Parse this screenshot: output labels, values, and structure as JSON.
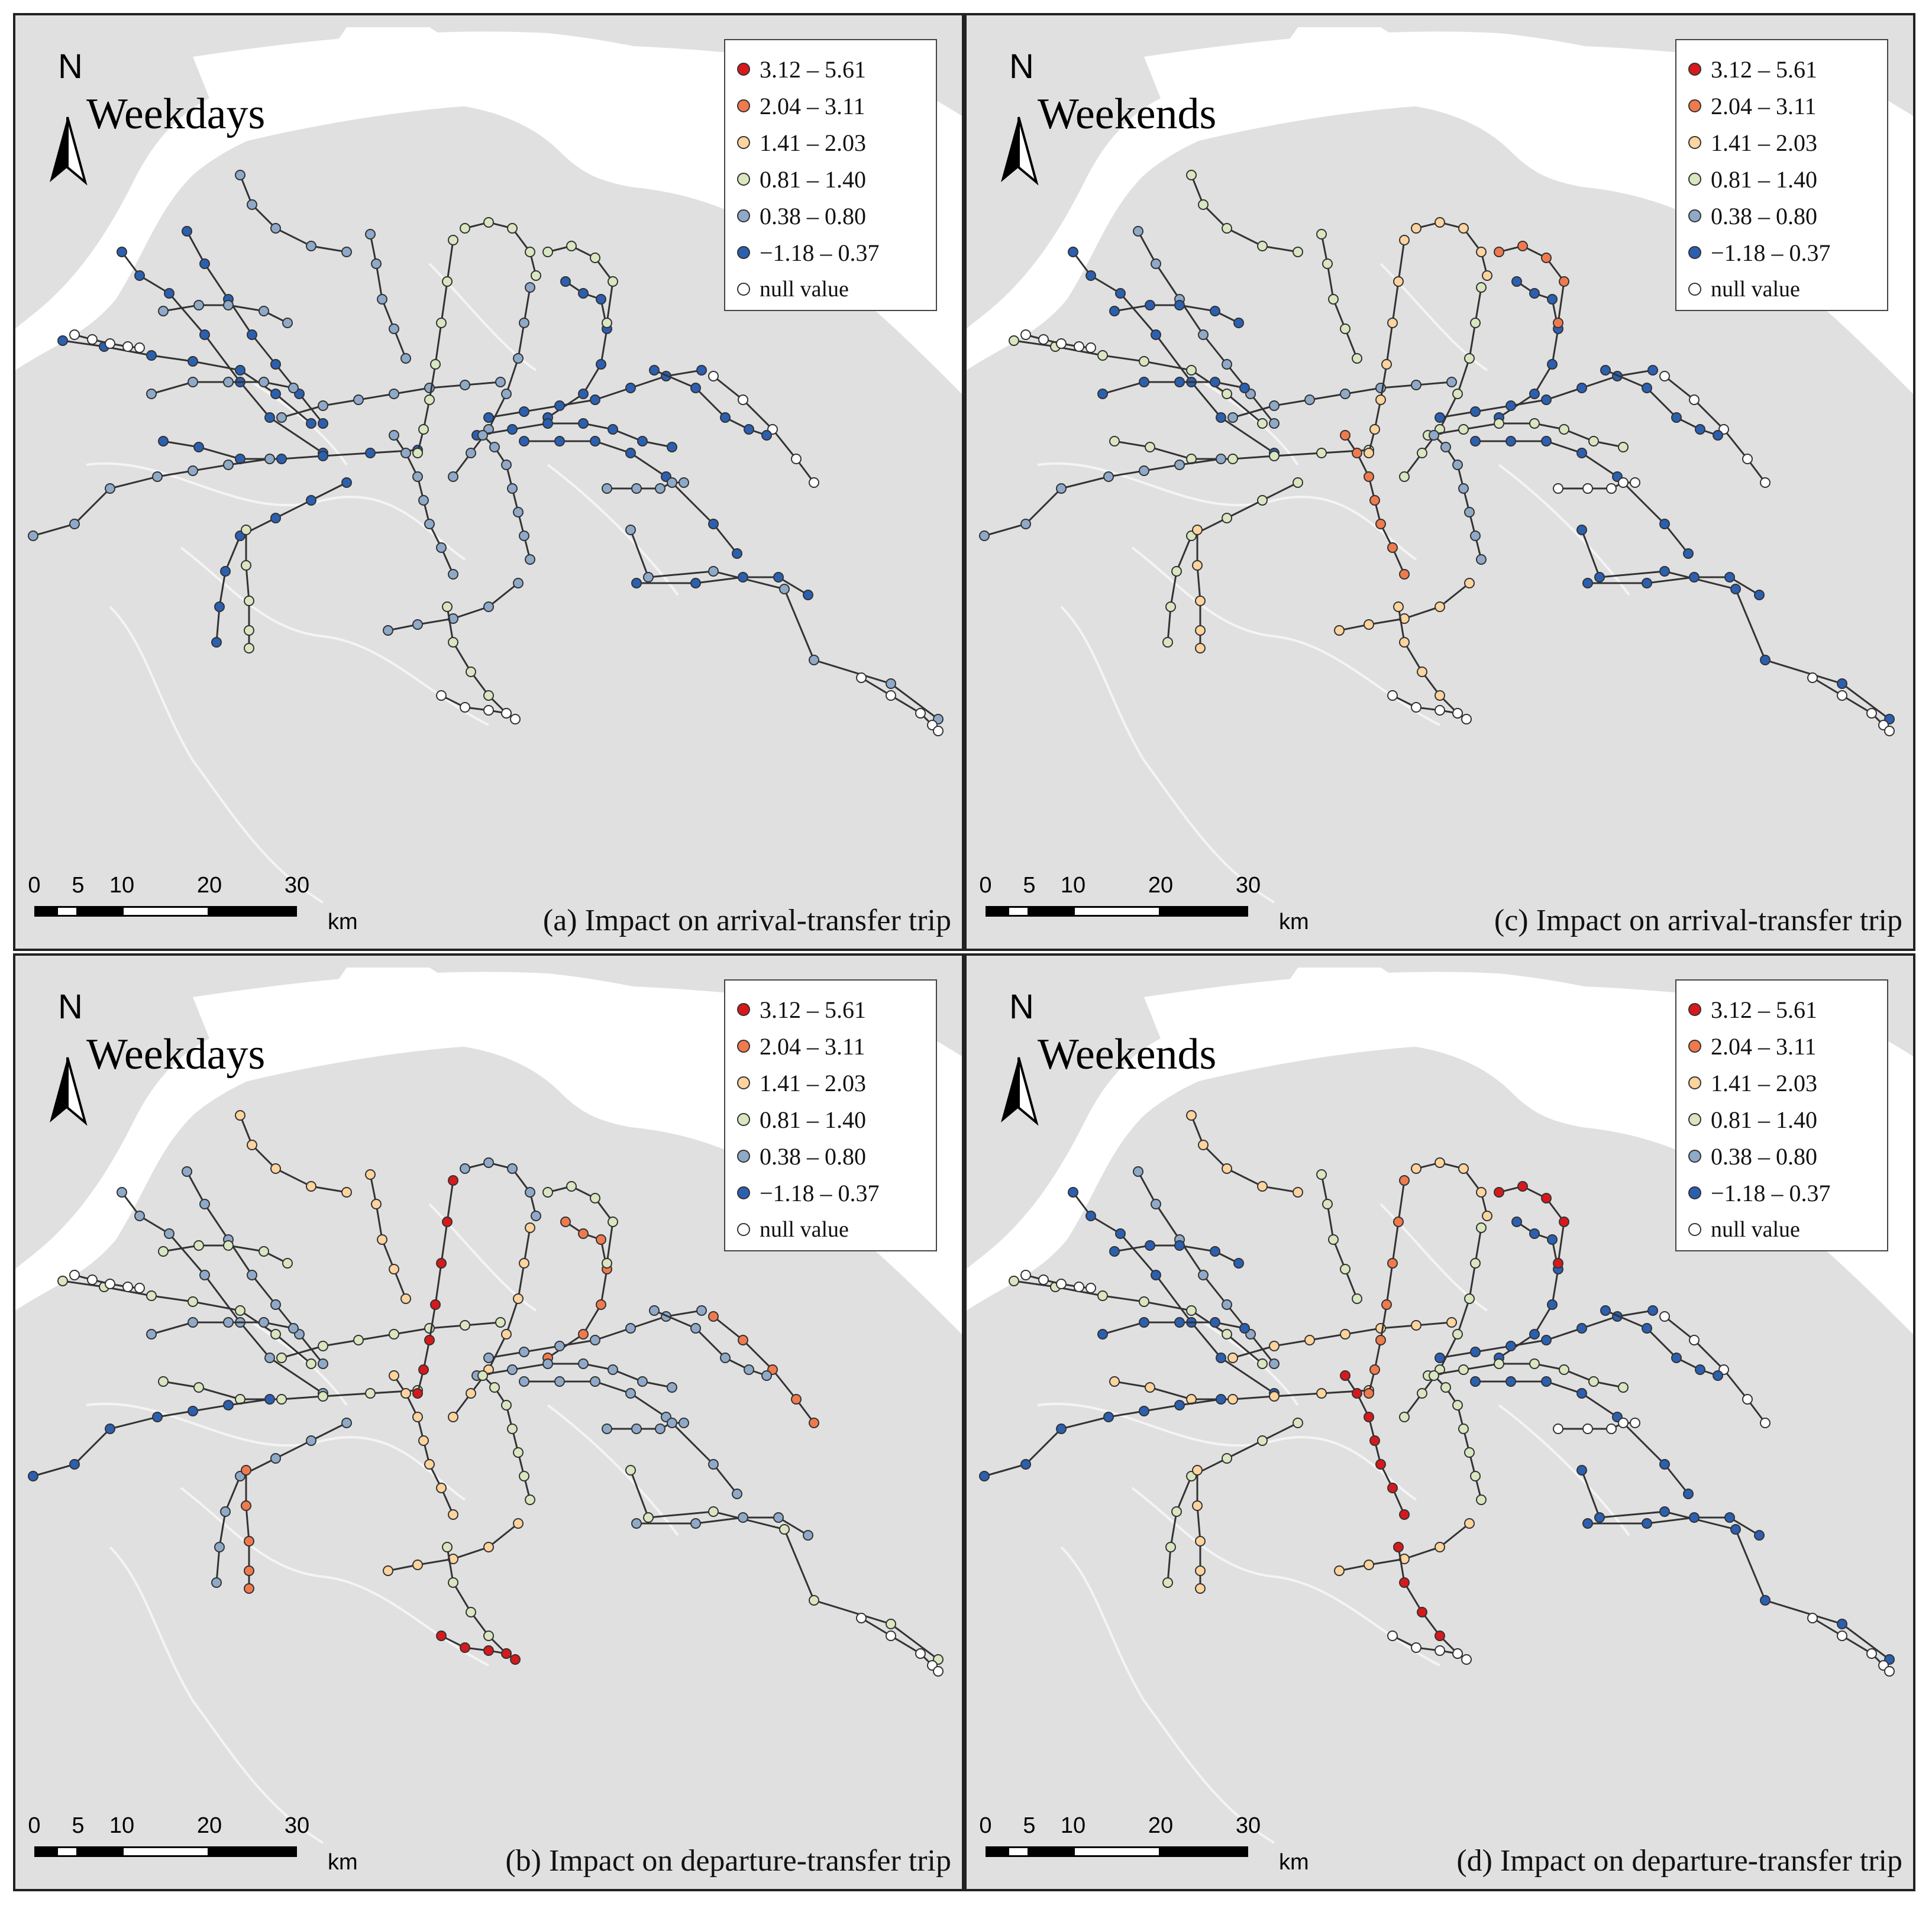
{
  "legend": {
    "classes": [
      {
        "label": "3.12 – 5.61",
        "color": "#d7191c"
      },
      {
        "label": "2.04 – 3.11",
        "color": "#f07a4d"
      },
      {
        "label": "1.41 – 2.03",
        "color": "#fdd49e"
      },
      {
        "label": "0.81 – 1.40",
        "color": "#d9e6c0"
      },
      {
        "label": "0.38 – 0.80",
        "color": "#8fa9c8"
      },
      {
        "label": "−1.18 – 0.37",
        "color": "#2b5fb0"
      },
      {
        "label": "null value",
        "color": "#ffffff"
      }
    ]
  },
  "map_colors": {
    "land": "#e0e0e0",
    "water": "#ffffff",
    "district_border": "#f4f4f4",
    "metro_line": "#333333"
  },
  "north_label": "N",
  "scale": {
    "ticks": [
      "0",
      "5",
      "10",
      "20",
      "30"
    ],
    "unit": "km"
  },
  "panels": [
    {
      "id": "a",
      "title": "Weekdays",
      "caption": "(a) Impact on arrival-transfer trip",
      "line_classes": [
        5,
        5,
        5,
        5,
        5,
        4,
        4,
        5,
        4,
        3,
        5,
        5,
        5,
        4,
        4,
        4
      ],
      "tail_classes": [
        4,
        4,
        3,
        4,
        3,
        3,
        3,
        6,
        6,
        5,
        4,
        4,
        5,
        4,
        6,
        6
      ]
    },
    {
      "id": "c",
      "title": "Weekends",
      "caption": "(c) Impact on arrival-transfer trip",
      "line_classes": [
        5,
        3,
        3,
        3,
        4,
        1,
        4,
        5,
        3,
        2,
        5,
        3,
        5,
        4,
        5,
        4
      ],
      "tail_classes": [
        3,
        2,
        2,
        3,
        2,
        2,
        1,
        6,
        6,
        5,
        5,
        5,
        5,
        6,
        6,
        6
      ]
    },
    {
      "id": "b",
      "title": "Weekdays",
      "caption": "(b) Impact on departure-transfer trip",
      "line_classes": [
        4,
        3,
        3,
        4,
        4,
        2,
        3,
        1,
        2,
        0,
        4,
        4,
        4,
        3,
        3,
        5
      ],
      "tail_classes": [
        2,
        2,
        1,
        2,
        4,
        3,
        3,
        0,
        1,
        4,
        4,
        3,
        4,
        4,
        6,
        6
      ]
    },
    {
      "id": "d",
      "title": "Weekends",
      "caption": "(d) Impact on departure-transfer trip",
      "line_classes": [
        5,
        3,
        2,
        3,
        4,
        0,
        2,
        5,
        3,
        1,
        5,
        3,
        5,
        3,
        5,
        5
      ],
      "tail_classes": [
        2,
        2,
        2,
        3,
        2,
        0,
        0,
        6,
        6,
        5,
        5,
        5,
        5,
        6,
        6,
        6
      ]
    }
  ]
}
